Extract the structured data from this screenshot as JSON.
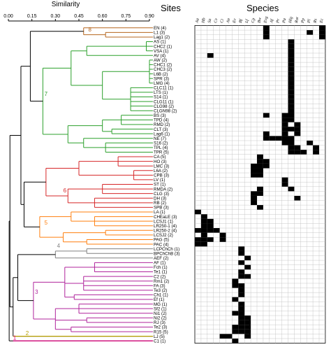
{
  "chart_data": {
    "type": "heatmap",
    "title": "",
    "xlabel": "Similarity",
    "xticks": [
      "0.00",
      "0.15",
      "0.30",
      "0.45",
      "0.60",
      "0.75",
      "0.90"
    ],
    "sites_header": "Sites",
    "species_header": "Species",
    "species": [
      "Aa",
      "Hb",
      "Sa",
      "Cv",
      "Ci",
      "An",
      "Ev",
      "Bf",
      "Lf",
      "Cp",
      "Bw",
      "Evg",
      "Af",
      "Pr",
      "Pa",
      "Hlg",
      "Ror",
      "Pp",
      "Pl",
      "Rs",
      "Ec"
    ],
    "sites": [
      "EN (4)",
      "L1 (3)",
      "Lag1 (2)",
      "AS (1)",
      "CHC2 (1)",
      "VSA (1)",
      "AV (4)",
      "AW (2)",
      "CHC1 (2)",
      "CHC3 (2)",
      "L6B (2)",
      "SPR (3)",
      "LMG (4)",
      "CLC11 (1)",
      "LTS (1)",
      "S14 (1)",
      "CLG11 (1)",
      "CLG98 (2)",
      "CLGN98 (2)",
      "BS (3)",
      "TPD (4)",
      "RMD (2)",
      "CLT (3)",
      "Lag6 (1)",
      "NE (7)",
      "S16 (2)",
      "TPL (4)",
      "TPR (5)",
      "CA (5)",
      "HO (3)",
      "LMC (3)",
      "L6A (2)",
      "CPB (3)",
      "LV (1)",
      "ST (1)",
      "RMDA (2)",
      "CLG (3)",
      "DH (3)",
      "RB (2)",
      "SPB (3)",
      "LA (1)",
      "CHEaLE (3)",
      "LCSJ1 (1)",
      "LR250-1 (4)",
      "LR250-2 (4)",
      "LCSJ2 (2)",
      "PAG (5)",
      "PAC (4)",
      "LCPChCh (1)",
      "BPChChB (3)",
      "AEF (2)",
      "AF (1)",
      "Fch (1)",
      "Te1 (1)",
      "C2 (2)",
      "Rm1 (2)",
      "FA (3)",
      "Te3 (2)",
      "Ch1 (1)",
      "Ef (1)",
      "MG (1)",
      "Sf2 (1)",
      "Ni1 (2)",
      "Ni2 (2)",
      "RJ (3)",
      "Te2 (3)",
      "R15 (5)",
      "LJ (5)",
      "C1 (1)"
    ],
    "clusters": [
      {
        "label": "8",
        "color": "#b5651d",
        "first": 0,
        "last": 2
      },
      {
        "label": "7",
        "color": "#2ca02c",
        "first": 3,
        "last": 27
      },
      {
        "label": "6",
        "color": "#d62728",
        "first": 28,
        "last": 39
      },
      {
        "label": "5",
        "color": "#ff7f0e",
        "first": 40,
        "last": 47
      },
      {
        "label": "4",
        "color": "#808080",
        "first": 48,
        "last": 50
      },
      {
        "label": "3",
        "color": "#b0249c",
        "first": 51,
        "last": 66
      },
      {
        "label": "2",
        "color": "#b8a000",
        "first": 67,
        "last": 67
      },
      {
        "label": "1",
        "color": "#e0007f",
        "first": 68,
        "last": 68
      }
    ],
    "presence": [
      [
        11,
        20
      ],
      [
        11,
        18,
        20
      ],
      [
        11,
        20
      ],
      [
        15
      ],
      [
        15
      ],
      [
        15
      ],
      [
        2,
        15
      ],
      [
        15
      ],
      [
        15
      ],
      [
        15
      ],
      [
        15
      ],
      [
        15
      ],
      [
        15
      ],
      [
        15
      ],
      [
        15
      ],
      [
        15
      ],
      [
        15
      ],
      [
        15
      ],
      [
        15
      ],
      [
        11,
        14,
        15
      ],
      [
        14,
        15
      ],
      [
        14,
        16
      ],
      [
        14,
        15,
        16
      ],
      [
        11,
        14,
        16
      ],
      [
        11,
        12,
        13,
        14,
        15
      ],
      [
        14,
        15,
        18
      ],
      [
        15,
        16,
        19
      ],
      [
        15,
        16,
        17,
        19
      ],
      [
        10
      ],
      [
        10,
        11
      ],
      [
        9,
        10,
        11
      ],
      [
        9,
        10
      ],
      [
        9,
        10
      ],
      [
        14
      ],
      [
        14
      ],
      [
        10,
        15
      ],
      [
        9,
        10
      ],
      [
        9,
        16
      ],
      [
        9
      ],
      [
        10
      ],
      [
        0
      ],
      [
        1
      ],
      [
        1,
        2
      ],
      [
        1,
        2
      ],
      [
        0,
        1,
        2,
        3
      ],
      [
        1,
        4
      ],
      [
        0,
        1,
        2,
        4
      ],
      [
        0,
        1
      ],
      [
        7
      ],
      [
        7
      ],
      [
        8
      ],
      [
        7
      ],
      [
        8
      ],
      [
        7
      ],
      [
        7,
        8
      ],
      [
        6
      ],
      [
        6,
        7
      ],
      [
        7
      ],
      [
        7
      ],
      [
        6
      ],
      [
        7
      ],
      [
        7
      ],
      [
        6,
        7
      ],
      [
        7,
        8
      ],
      [
        7,
        8
      ],
      [
        6,
        7,
        8
      ],
      [
        6,
        7,
        8
      ],
      [
        4,
        5,
        8
      ],
      [
        6
      ]
    ]
  }
}
